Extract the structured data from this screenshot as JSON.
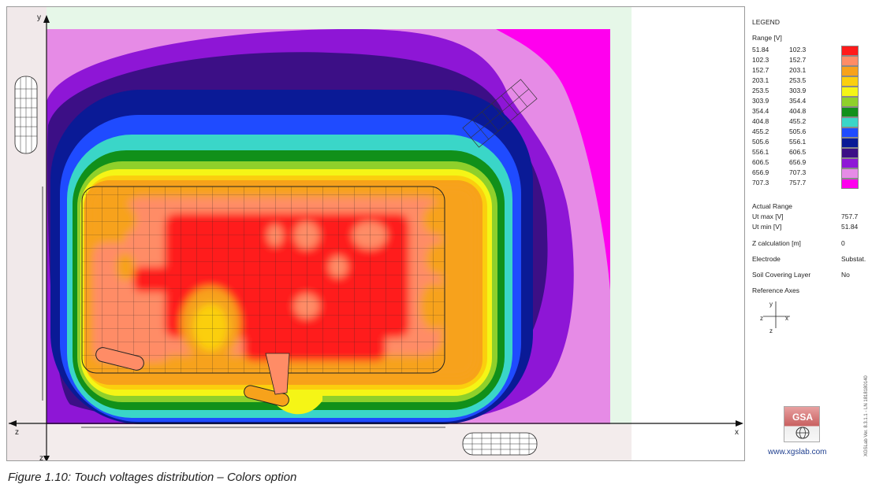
{
  "plot": {
    "axis_labels": {
      "y_top": "y",
      "z_left": "z",
      "x_right": "x",
      "z_bottom": "z"
    }
  },
  "legend": {
    "title": "LEGEND",
    "range_label": "Range [V]",
    "ranges": [
      {
        "from": "51.84",
        "to": "102.3",
        "color": "#ff1a1a"
      },
      {
        "from": "102.3",
        "to": "152.7",
        "color": "#ff8c66"
      },
      {
        "from": "152.7",
        "to": "203.1",
        "color": "#f7a21b"
      },
      {
        "from": "203.1",
        "to": "253.5",
        "color": "#fbcf0e"
      },
      {
        "from": "253.5",
        "to": "303.9",
        "color": "#f5f516"
      },
      {
        "from": "303.9",
        "to": "354.4",
        "color": "#8fd02b"
      },
      {
        "from": "354.4",
        "to": "404.8",
        "color": "#11901a"
      },
      {
        "from": "404.8",
        "to": "455.2",
        "color": "#3ad6c8"
      },
      {
        "from": "455.2",
        "to": "505.6",
        "color": "#1f4bff"
      },
      {
        "from": "505.6",
        "to": "556.1",
        "color": "#0a1a96"
      },
      {
        "from": "556.1",
        "to": "606.5",
        "color": "#3c0f86"
      },
      {
        "from": "606.5",
        "to": "656.9",
        "color": "#8e16d6"
      },
      {
        "from": "656.9",
        "to": "707.3",
        "color": "#e68be6"
      },
      {
        "from": "707.3",
        "to": "757.7",
        "color": "#ff00ee"
      }
    ],
    "actual_range_label": "Actual Range",
    "ut_max_label": "Ut max [V]",
    "ut_max_value": "757.7",
    "ut_min_label": "Ut min [V]",
    "ut_min_value": "51.84",
    "z_calc_label": "Z calculation [m]",
    "z_calc_value": "0",
    "electrode_label": "Electrode",
    "electrode_value": "Substat.",
    "soil_label": "Soil Covering Layer",
    "soil_value": "No",
    "ref_axes_label": "Reference Axes",
    "ref_axes": {
      "y": "y",
      "z_left": "z",
      "x": "x",
      "z_bottom": "z"
    }
  },
  "branding": {
    "logo_text": "GSA",
    "website": "www.xgslab.com",
    "version": "XGSLab Ver. 8.3.1.1 - LN 1818180140"
  },
  "caption": "Figure 1.10: Touch voltages distribution – Colors option"
}
